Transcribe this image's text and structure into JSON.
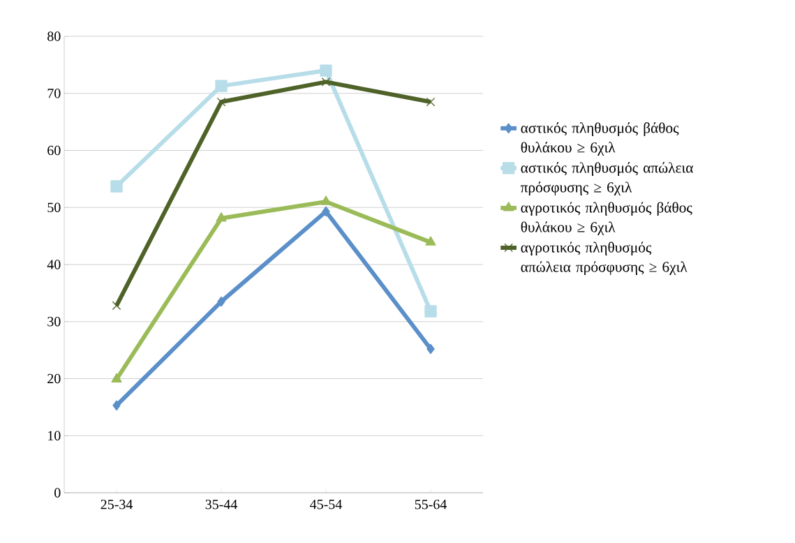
{
  "chart_data": {
    "type": "line",
    "categories": [
      "25-34",
      "35-44",
      "45-54",
      "55-64"
    ],
    "series": [
      {
        "name": "αστικός πληθυσμός βάθος θυλάκου ≥ 6χιλ",
        "color": "#5b8fc9",
        "marker": "diamond",
        "values": [
          15.3,
          33.5,
          49.3,
          25.2
        ]
      },
      {
        "name": "αστικός πληθυσμός απώλεια πρόσφυσης ≥ 6χιλ",
        "color": "#b7dde8",
        "marker": "square",
        "values": [
          53.7,
          71.3,
          74.0,
          31.8
        ]
      },
      {
        "name": "αγροτικός πληθυσμός βάθος θυλάκου ≥ 6χιλ",
        "color": "#9bbb59",
        "marker": "triangle",
        "values": [
          19.9,
          48.1,
          51.0,
          43.9
        ]
      },
      {
        "name": "αγροτικός πληθυσμός απώλεια πρόσφυσης ≥ 6χιλ",
        "color": "#4f6228",
        "marker": "cross",
        "values": [
          32.8,
          68.5,
          72.0,
          68.5
        ]
      }
    ],
    "ylim": [
      0,
      80
    ],
    "yticks": [
      0,
      10,
      20,
      30,
      40,
      50,
      60,
      70,
      80
    ],
    "grid": "y",
    "legend": "right",
    "line_style": "solid"
  }
}
